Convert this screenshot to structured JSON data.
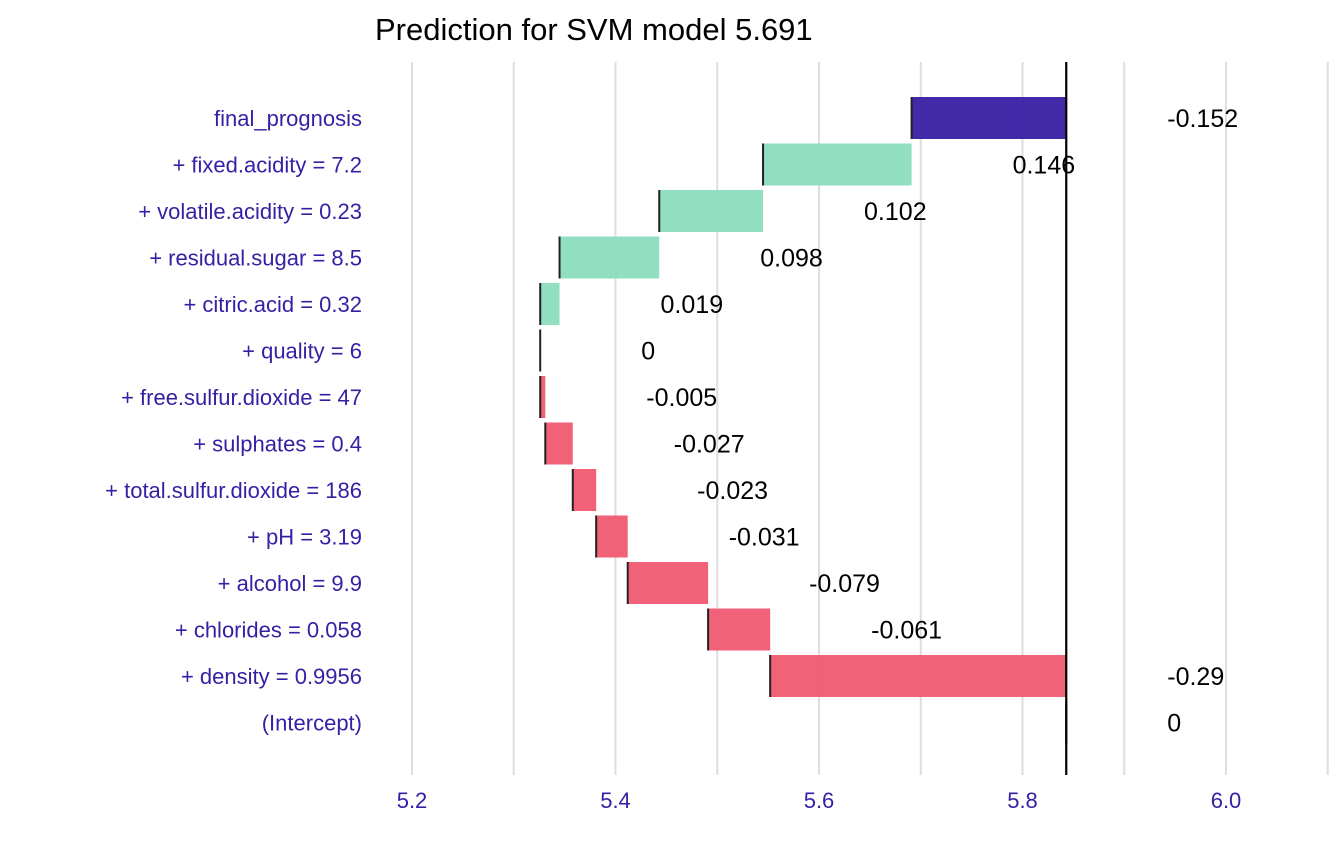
{
  "chart_data": {
    "type": "bar",
    "subtype": "waterfall-break-down",
    "title": "Prediction for SVM model 5.691",
    "xlim": [
      5.19,
      6.03
    ],
    "x_ticks": [
      5.2,
      5.4,
      5.6,
      5.8,
      6.0
    ],
    "x_tick_labels": [
      "5.2",
      "5.4",
      "5.6",
      "5.8",
      "6.0"
    ],
    "grid": true,
    "legend": "none",
    "reference_line": 5.843,
    "colors": {
      "positive": "#8bdcbe",
      "negative": "#f05a71",
      "final": "#371ea3",
      "axis_text": "#371ea3",
      "grid": "#dedede",
      "reference_line": "#000000"
    },
    "bars": [
      {
        "label": "final_prognosis",
        "start": 5.843,
        "end": 5.691,
        "value_label": "-0.152",
        "kind": "final"
      },
      {
        "label": "+ fixed.acidity = 7.2",
        "start": 5.691,
        "end": 5.545,
        "value_label": "0.146",
        "kind": "positive"
      },
      {
        "label": "+ volatile.acidity = 0.23",
        "start": 5.545,
        "end": 5.443,
        "value_label": "0.102",
        "kind": "positive"
      },
      {
        "label": "+ residual.sugar = 8.5",
        "start": 5.443,
        "end": 5.345,
        "value_label": "0.098",
        "kind": "positive"
      },
      {
        "label": "+ citric.acid = 0.32",
        "start": 5.345,
        "end": 5.326,
        "value_label": "0.019",
        "kind": "positive"
      },
      {
        "label": "+ quality = 6",
        "start": 5.326,
        "end": 5.326,
        "value_label": "0",
        "kind": "zero"
      },
      {
        "label": "+ free.sulfur.dioxide = 47",
        "start": 5.326,
        "end": 5.331,
        "value_label": "-0.005",
        "kind": "negative"
      },
      {
        "label": "+ sulphates = 0.4",
        "start": 5.331,
        "end": 5.358,
        "value_label": "-0.027",
        "kind": "negative"
      },
      {
        "label": "+ total.sulfur.dioxide = 186",
        "start": 5.358,
        "end": 5.381,
        "value_label": "-0.023",
        "kind": "negative"
      },
      {
        "label": "+ pH = 3.19",
        "start": 5.381,
        "end": 5.412,
        "value_label": "-0.031",
        "kind": "negative"
      },
      {
        "label": "+ alcohol = 9.9",
        "start": 5.412,
        "end": 5.491,
        "value_label": "-0.079",
        "kind": "negative"
      },
      {
        "label": "+ chlorides = 0.058",
        "start": 5.491,
        "end": 5.552,
        "value_label": "-0.061",
        "kind": "negative"
      },
      {
        "label": "+ density = 0.9956",
        "start": 5.552,
        "end": 5.843,
        "value_label": "-0.29",
        "kind": "negative"
      },
      {
        "label": "(Intercept)",
        "start": 5.843,
        "end": 5.843,
        "value_label": "0",
        "kind": "zero"
      }
    ]
  }
}
